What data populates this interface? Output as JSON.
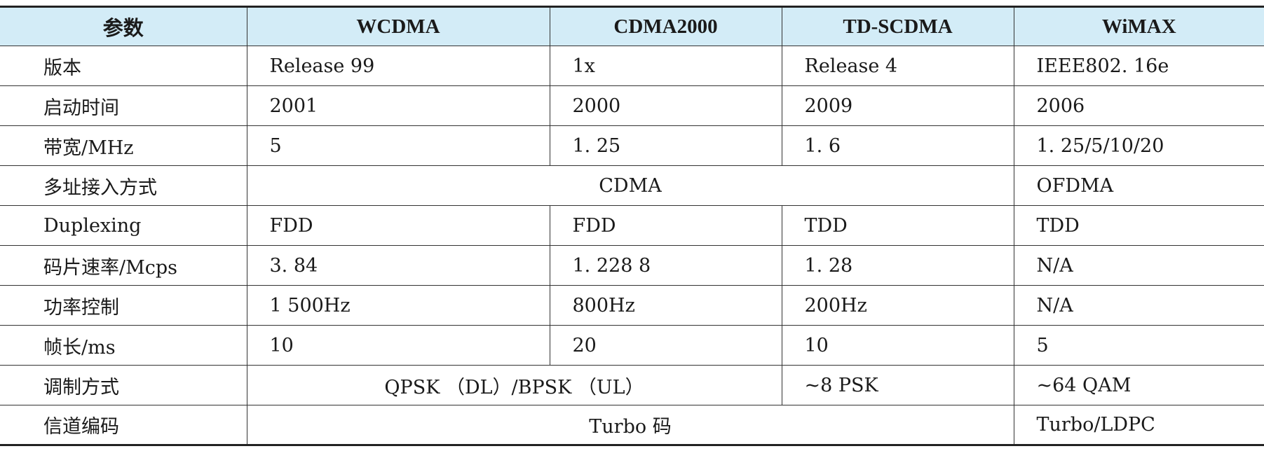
{
  "table": {
    "headers": [
      "参数",
      "WCDMA",
      "CDMA2000",
      "TD-SCDMA",
      "WiMAX"
    ],
    "rows": {
      "version": {
        "label": "版本",
        "wcdma": "Release 99",
        "cdma2000": "1x",
        "tdscdma": "Release 4",
        "wimax": "IEEE802. 16e"
      },
      "launch_time": {
        "label": "启动时间",
        "wcdma": "2001",
        "cdma2000": "2000",
        "tdscdma": "2009",
        "wimax": "2006"
      },
      "bandwidth": {
        "label": "带宽/MHz",
        "wcdma": "5",
        "cdma2000": "1. 25",
        "tdscdma": "1. 6",
        "wimax": "1. 25/5/10/20"
      },
      "multiple_access": {
        "label": "多址接入方式",
        "merged_3g": "CDMA",
        "wimax": "OFDMA"
      },
      "duplexing": {
        "label": "Duplexing",
        "wcdma": "FDD",
        "cdma2000": "FDD",
        "tdscdma": "TDD",
        "wimax": "TDD"
      },
      "chip_rate": {
        "label": "码片速率/Mcps",
        "wcdma": "3. 84",
        "cdma2000": "1. 228 8",
        "tdscdma": "1. 28",
        "wimax": "N/A"
      },
      "power_control": {
        "label": "功率控制",
        "wcdma": "1 500Hz",
        "cdma2000": "800Hz",
        "tdscdma": "200Hz",
        "wimax": "N/A"
      },
      "frame_length": {
        "label": "帧长/ms",
        "wcdma": "10",
        "cdma2000": "20",
        "tdscdma": "10",
        "wimax": "5"
      },
      "modulation": {
        "label": "调制方式",
        "merged_wcdma_cdma2000": "QPSK （DL）/BPSK （UL）",
        "tdscdma": "~8 PSK",
        "wimax": "~64 QAM"
      },
      "channel_coding": {
        "label": "信道编码",
        "merged_3g": "Turbo 码",
        "wimax": "Turbo/LDPC"
      }
    }
  }
}
